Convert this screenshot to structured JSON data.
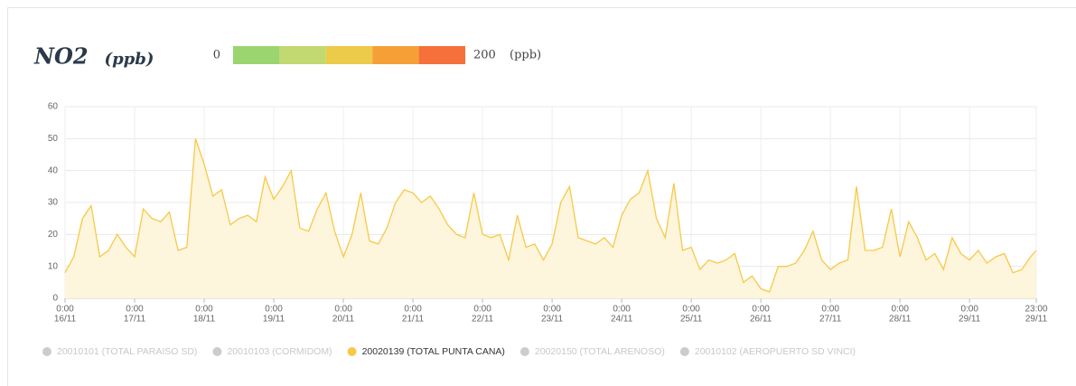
{
  "chart_data": {
    "type": "line",
    "title": "NO2",
    "unit": "(ppb)",
    "scale": {
      "min": "0",
      "max": "200",
      "unit": "(ppb)",
      "colors": [
        "#9bd56f",
        "#c2d870",
        "#ecca4a",
        "#f5a036",
        "#f5703a"
      ]
    },
    "x": [
      0,
      3,
      6,
      9,
      12,
      15,
      18,
      21,
      24,
      27,
      30,
      33,
      36,
      39,
      42,
      45,
      48,
      51,
      54,
      57,
      60,
      63,
      66,
      69,
      72,
      75,
      78,
      81,
      84,
      87,
      90,
      93,
      96,
      99,
      102,
      105,
      108,
      111,
      114,
      117,
      120,
      123,
      126,
      129,
      132,
      135,
      138,
      141,
      144,
      147,
      150,
      153,
      156,
      159,
      162,
      165,
      168,
      171,
      174,
      177,
      180,
      183,
      186,
      189,
      192,
      195,
      198,
      201,
      204,
      207,
      210,
      213,
      216,
      219,
      222,
      225,
      228,
      231,
      234,
      237,
      240,
      243,
      246,
      249,
      252,
      255,
      258,
      261,
      264,
      267,
      270,
      273,
      276,
      279,
      282,
      285,
      288,
      291,
      294,
      297,
      300,
      303,
      306,
      309,
      312,
      315,
      318,
      321,
      324,
      327,
      330,
      333,
      335
    ],
    "series": [
      {
        "name": "20010101 (TOTAL PARAISO SD)",
        "color": "#cccccc",
        "visible": false
      },
      {
        "name": "20010103 (CORMIDOM)",
        "color": "#cccccc",
        "visible": false
      },
      {
        "name": "20020139 (TOTAL PUNTA CANA)",
        "color": "#f7c948",
        "visible": true,
        "values": [
          8,
          13,
          25,
          29,
          13,
          15,
          20,
          16,
          13,
          28,
          25,
          24,
          27,
          15,
          16,
          50,
          42,
          32,
          34,
          23,
          25,
          26,
          24,
          38,
          31,
          35,
          40,
          22,
          21,
          28,
          33,
          21,
          13,
          20,
          33,
          18,
          17,
          22,
          30,
          34,
          33,
          30,
          32,
          28,
          23,
          20,
          19,
          33,
          20,
          19,
          20,
          12,
          26,
          16,
          17,
          12,
          17,
          30,
          35,
          19,
          18,
          17,
          19,
          16,
          26,
          31,
          33,
          40,
          25,
          19,
          36,
          15,
          16,
          9,
          12,
          11,
          12,
          14,
          5,
          7,
          3,
          2,
          10,
          10,
          11,
          15,
          21,
          12,
          9,
          11,
          12,
          35,
          15,
          15,
          16,
          28,
          13,
          24,
          19,
          12,
          14,
          9,
          19,
          14,
          12,
          15,
          11,
          13,
          14,
          8,
          9,
          13,
          15
        ]
      },
      {
        "name": "20020150 (TOTAL ARENOSO)",
        "color": "#cccccc",
        "visible": false
      },
      {
        "name": "20010102 (AEROPUERTO SD VINCI)",
        "color": "#cccccc",
        "visible": false
      }
    ],
    "xlim": [
      0,
      335
    ],
    "xticks": [
      {
        "value": 0,
        "label": [
          "0:00",
          "16/11"
        ]
      },
      {
        "value": 24,
        "label": [
          "0:00",
          "17/11"
        ]
      },
      {
        "value": 48,
        "label": [
          "0:00",
          "18/11"
        ]
      },
      {
        "value": 72,
        "label": [
          "0:00",
          "19/11"
        ]
      },
      {
        "value": 96,
        "label": [
          "0:00",
          "20/11"
        ]
      },
      {
        "value": 120,
        "label": [
          "0:00",
          "21/11"
        ]
      },
      {
        "value": 144,
        "label": [
          "0:00",
          "22/11"
        ]
      },
      {
        "value": 168,
        "label": [
          "0:00",
          "23/11"
        ]
      },
      {
        "value": 192,
        "label": [
          "0:00",
          "24/11"
        ]
      },
      {
        "value": 216,
        "label": [
          "0:00",
          "25/11"
        ]
      },
      {
        "value": 240,
        "label": [
          "0:00",
          "26/11"
        ]
      },
      {
        "value": 264,
        "label": [
          "0:00",
          "27/11"
        ]
      },
      {
        "value": 288,
        "label": [
          "0:00",
          "28/11"
        ]
      },
      {
        "value": 312,
        "label": [
          "0:00",
          "29/11"
        ]
      },
      {
        "value": 335,
        "label": [
          "23:00",
          "29/11"
        ]
      }
    ],
    "ylim": [
      0,
      60
    ],
    "yticks": [
      0,
      10,
      20,
      30,
      40,
      50,
      60
    ],
    "grid": true,
    "area_color": "#fdf5dc",
    "legend": "bottom"
  }
}
